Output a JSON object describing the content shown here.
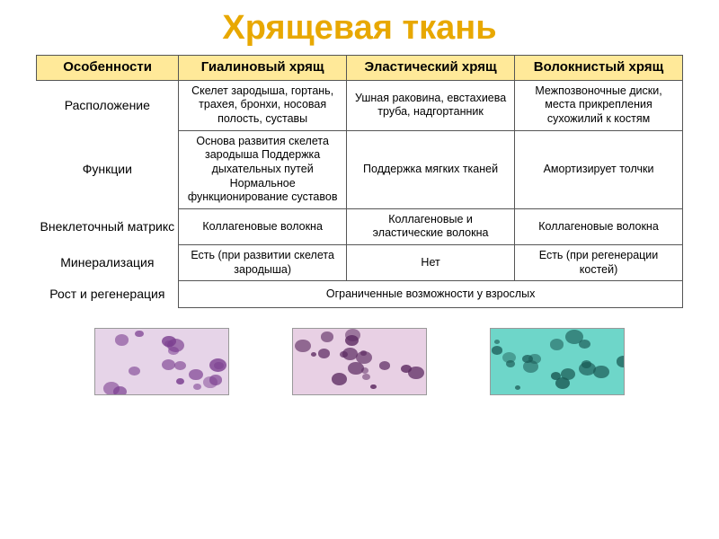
{
  "title": "Хрящевая ткань",
  "title_color": "#e8a800",
  "title_fontsize": 38,
  "header_bg": "#ffe999",
  "header_text_color": "#000000",
  "cell_border_color": "#555555",
  "columns": {
    "features": "Особенности",
    "hyaline": "Гиалиновый хрящ",
    "elastic": "Эластический хрящ",
    "fibrous": "Волокнистый хрящ"
  },
  "rows": {
    "location": {
      "label": "Расположение",
      "hyaline": "Скелет зародыша, гортань, трахея, бронхи, носовая полость, суставы",
      "elastic": "Ушная раковина, евстахиева труба, надгортанник",
      "fibrous": "Межпозвоночные диски, места прикрепления сухожилий к костям"
    },
    "functions": {
      "label": "Функции",
      "hyaline": "Основа развития скелета зародыша Поддержка дыхательных путей Нормальное функционирование суставов",
      "elastic": "Поддержка мягких тканей",
      "fibrous": "Амортизирует толчки"
    },
    "matrix": {
      "label": "Внеклеточный матрикс",
      "hyaline": "Коллагеновые волокна",
      "elastic": "Коллагеновые и эластические волокна",
      "fibrous": "Коллагеновые волокна"
    },
    "mineral": {
      "label": "Минерализация",
      "hyaline": "Есть (при развитии скелета зародыша)",
      "elastic": "Нет",
      "fibrous": "Есть (при регенерации костей)"
    },
    "growth": {
      "label": "Рост и регенерация",
      "merged": "Ограниченные возможности у взрослых"
    }
  },
  "micrographs": {
    "hyaline": {
      "bg": "#e6d4e8",
      "spot": "#7a3d8f"
    },
    "elastic": {
      "bg": "#e8d0e4",
      "spot": "#5c2a61"
    },
    "fibrous": {
      "bg": "#6ed6c9",
      "spot": "#1a5a55"
    }
  }
}
